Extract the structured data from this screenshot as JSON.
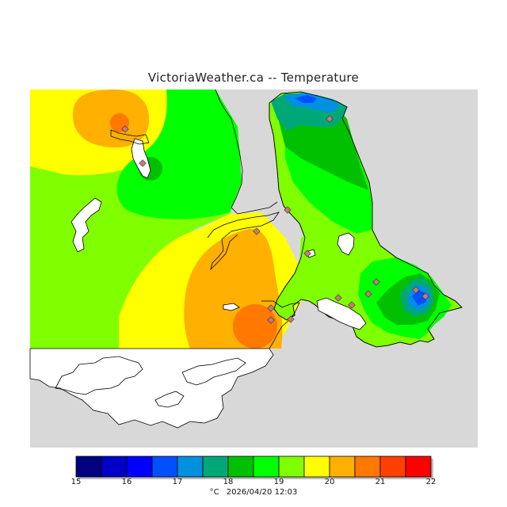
{
  "title": "VictoriaWeather.ca -- Temperature",
  "legend": {
    "ticks": [
      "15",
      "16",
      "17",
      "18",
      "19",
      "20",
      "21",
      "22"
    ],
    "colors": [
      "#000080",
      "#0000c8",
      "#0000ff",
      "#0050ff",
      "#0090e0",
      "#00a878",
      "#00c000",
      "#00ff00",
      "#80ff00",
      "#ffff00",
      "#ffb000",
      "#ff7800",
      "#ff4000",
      "#ff0000"
    ],
    "unit": "°C",
    "timestamp": "2026/04/20 12:03"
  },
  "colors": {
    "land_no_data": "#d8d8d8",
    "water": "#ffffff",
    "coastline": "#000000",
    "station_marker": "#c87878"
  },
  "stations": [
    {
      "temp_band": "21"
    },
    {
      "temp_band": "18"
    },
    {
      "temp_band": "20"
    },
    {
      "temp_band": "18"
    },
    {
      "temp_band": "19"
    },
    {
      "temp_band": "21"
    },
    {
      "temp_band": "21"
    },
    {
      "temp_band": "20"
    },
    {
      "temp_band": "19"
    },
    {
      "temp_band": "19"
    },
    {
      "temp_band": "18"
    },
    {
      "temp_band": "17"
    },
    {
      "temp_band": "17"
    },
    {
      "temp_band": "19"
    },
    {
      "temp_band": "18"
    }
  ]
}
